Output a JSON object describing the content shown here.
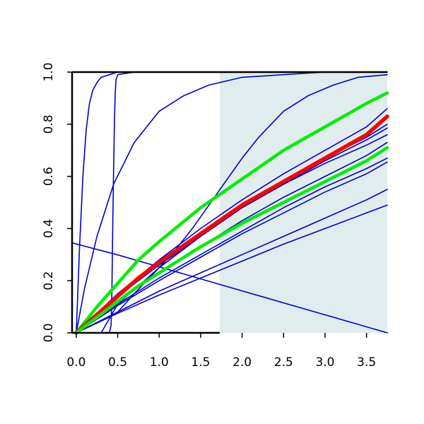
{
  "chart_data": {
    "type": "line",
    "title": "",
    "xlabel": "",
    "ylabel": "",
    "xlim": [
      -0.05,
      3.75
    ],
    "ylim": [
      0.0,
      1.0
    ],
    "x_ticks": [
      {
        "value": 0.0,
        "label": "0.0"
      },
      {
        "value": 0.5,
        "label": "0.5"
      },
      {
        "value": 1.0,
        "label": "1.0"
      },
      {
        "value": 1.5,
        "label": "1.5"
      },
      {
        "value": 2.0,
        "label": "2.0"
      },
      {
        "value": 2.5,
        "label": "2.5"
      },
      {
        "value": 3.0,
        "label": "3.0"
      },
      {
        "value": 3.5,
        "label": "3.5"
      }
    ],
    "y_ticks": [
      {
        "value": 0.0,
        "label": "0.0"
      },
      {
        "value": 0.2,
        "label": "0.2"
      },
      {
        "value": 0.4,
        "label": "0.4"
      },
      {
        "value": 0.6,
        "label": "0.6"
      },
      {
        "value": 0.8,
        "label": "0.8"
      },
      {
        "value": 1.0,
        "label": "1.0"
      }
    ],
    "grid": false,
    "shaded_region": {
      "x_from": 1.73,
      "x_to": 3.75,
      "y_from": 0.0,
      "y_to": 1.0,
      "color": "#e0eced"
    },
    "colors": {
      "blue": "#0000d0",
      "red": "#ff0000",
      "green": "#00ee00",
      "axis": "#000000"
    },
    "series": [
      {
        "color": "#0000d0",
        "width": 1.6,
        "x": [
          0,
          0.04,
          0.08,
          0.12,
          0.16,
          0.2,
          0.25,
          0.3,
          0.4,
          0.5,
          0.7,
          1.0,
          3.75
        ],
        "y": [
          0,
          0.33,
          0.6,
          0.78,
          0.88,
          0.93,
          0.96,
          0.98,
          0.99,
          1.0,
          1.0,
          1.0,
          1.0
        ]
      },
      {
        "color": "#0000d0",
        "width": 1.6,
        "x": [
          0,
          0.1,
          0.25,
          0.45,
          0.7,
          1.0,
          1.3,
          1.6,
          2.0,
          3.0,
          3.75
        ],
        "y": [
          0,
          0.17,
          0.37,
          0.57,
          0.73,
          0.85,
          0.91,
          0.95,
          0.98,
          1.0,
          1.0
        ]
      },
      {
        "color": "#0000d0",
        "width": 1.6,
        "x": [
          0.4,
          0.42,
          0.43,
          0.44,
          0.45,
          0.46,
          0.47,
          0.48,
          0.5,
          0.7,
          1.0,
          3.75
        ],
        "y": [
          0,
          0.03,
          0.15,
          0.4,
          0.62,
          0.8,
          0.92,
          0.97,
          0.99,
          1.0,
          1.0,
          1.0
        ]
      },
      {
        "color": "#0000d0",
        "width": 1.6,
        "x": [
          0.4,
          0.5,
          0.7,
          1.0,
          1.2,
          1.4,
          1.6,
          1.8,
          2.0,
          2.2,
          2.5,
          2.8,
          3.1,
          3.4,
          3.75
        ],
        "y": [
          0.06,
          0.08,
          0.15,
          0.25,
          0.32,
          0.4,
          0.49,
          0.58,
          0.67,
          0.75,
          0.85,
          0.91,
          0.95,
          0.98,
          0.99
        ]
      },
      {
        "color": "#0000d0",
        "width": 1.6,
        "x": [
          -0.05,
          0.5,
          1.0,
          1.5,
          2.0,
          2.5,
          3.0,
          3.5,
          3.75
        ],
        "y": [
          0.345,
          0.299,
          0.253,
          0.207,
          0.161,
          0.115,
          0.069,
          0.023,
          0.0
        ]
      },
      {
        "color": "#0000d0",
        "width": 1.6,
        "x": [
          0,
          0.5,
          1.0,
          1.5,
          2.0,
          2.5,
          3.0,
          3.5,
          3.75
        ],
        "y": [
          0,
          0.15,
          0.28,
          0.4,
          0.51,
          0.61,
          0.7,
          0.79,
          0.86
        ]
      },
      {
        "color": "#0000d0",
        "width": 1.6,
        "x": [
          0,
          0.5,
          1.0,
          1.5,
          2.0,
          2.5,
          3.0,
          3.5,
          3.75
        ],
        "y": [
          0,
          0.14,
          0.27,
          0.38,
          0.49,
          0.58,
          0.67,
          0.75,
          0.8
        ]
      },
      {
        "color": "#0000d0",
        "width": 1.6,
        "x": [
          0,
          0.5,
          1.0,
          1.5,
          2.0,
          2.5,
          3.0,
          3.5,
          3.75
        ],
        "y": [
          0,
          0.14,
          0.26,
          0.37,
          0.48,
          0.57,
          0.66,
          0.74,
          0.785
        ]
      },
      {
        "color": "#0000d0",
        "width": 1.6,
        "x": [
          0,
          0.5,
          1.0,
          1.5,
          2.0,
          2.5,
          3.0,
          3.5,
          3.75
        ],
        "y": [
          0,
          0.12,
          0.23,
          0.33,
          0.43,
          0.52,
          0.6,
          0.68,
          0.73
        ]
      },
      {
        "color": "#0000d0",
        "width": 1.6,
        "x": [
          0,
          0.5,
          1.0,
          1.5,
          2.0,
          2.5,
          3.0,
          3.5,
          3.75
        ],
        "y": [
          0,
          0.11,
          0.21,
          0.3,
          0.39,
          0.48,
          0.56,
          0.63,
          0.67
        ]
      },
      {
        "color": "#0000d0",
        "width": 1.6,
        "x": [
          0,
          0.5,
          1.0,
          1.5,
          2.0,
          2.5,
          3.0,
          3.5,
          3.75
        ],
        "y": [
          0,
          0.105,
          0.2,
          0.29,
          0.38,
          0.46,
          0.54,
          0.61,
          0.655
        ]
      },
      {
        "color": "#0000d0",
        "width": 1.6,
        "x": [
          0,
          0.5,
          1.0,
          1.5,
          2.0,
          2.5,
          3.0,
          3.5,
          3.75
        ],
        "y": [
          0,
          0.08,
          0.16,
          0.23,
          0.3,
          0.37,
          0.44,
          0.51,
          0.55
        ]
      },
      {
        "color": "#0000d0",
        "width": 1.6,
        "x": [
          0,
          0.5,
          1.0,
          1.5,
          2.0,
          2.5,
          3.0,
          3.5,
          3.75
        ],
        "y": [
          0,
          0.075,
          0.145,
          0.21,
          0.275,
          0.34,
          0.4,
          0.46,
          0.49
        ]
      },
      {
        "color": "#0000d0",
        "width": 1.6,
        "x": [
          0.3,
          0.5,
          1.0,
          1.5,
          2.0,
          2.5,
          3.0,
          3.5,
          3.75
        ],
        "y": [
          0,
          0.11,
          0.25,
          0.37,
          0.48,
          0.57,
          0.65,
          0.72,
          0.76
        ]
      },
      {
        "color": "#00ee00",
        "width": 4.5,
        "x": [
          0,
          0.25,
          0.5,
          0.75,
          1.0,
          1.5,
          2.0,
          2.5,
          3.0,
          3.5,
          3.75
        ],
        "y": [
          0,
          0.1,
          0.19,
          0.28,
          0.35,
          0.48,
          0.59,
          0.7,
          0.79,
          0.88,
          0.92
        ]
      },
      {
        "color": "#ff0000",
        "width": 5.5,
        "x": [
          0,
          0.25,
          0.5,
          0.75,
          1.0,
          1.5,
          2.0,
          2.5,
          3.0,
          3.5,
          3.75
        ],
        "y": [
          0,
          0.07,
          0.14,
          0.21,
          0.27,
          0.38,
          0.49,
          0.58,
          0.67,
          0.76,
          0.83
        ]
      },
      {
        "color": "#00ee00",
        "width": 4.5,
        "x": [
          0,
          0.25,
          0.5,
          0.75,
          1.0,
          1.5,
          2.0,
          2.5,
          3.0,
          3.5,
          3.75
        ],
        "y": [
          0,
          0.06,
          0.12,
          0.18,
          0.23,
          0.33,
          0.42,
          0.5,
          0.58,
          0.66,
          0.71
        ]
      }
    ]
  }
}
